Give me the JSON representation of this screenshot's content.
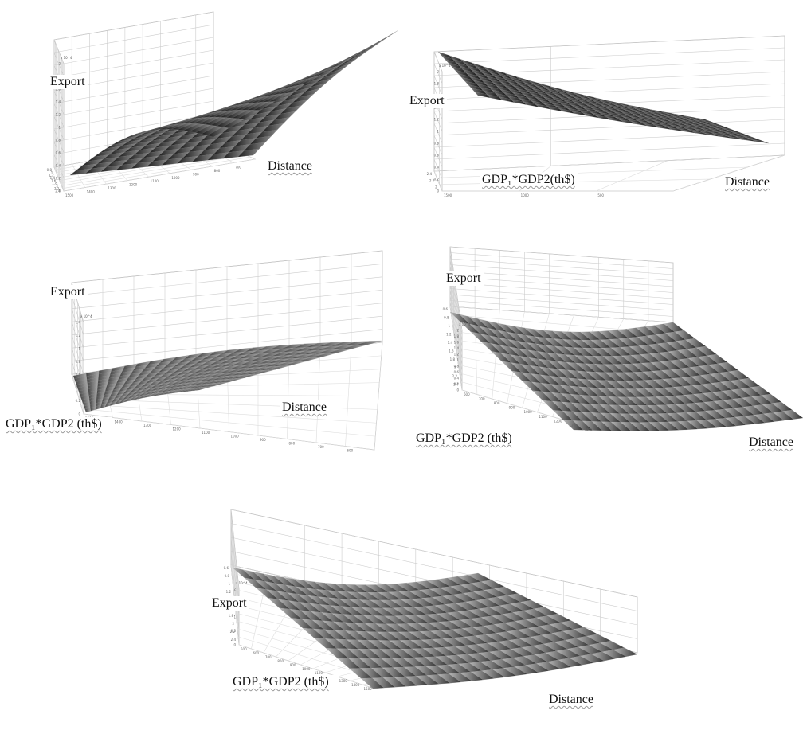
{
  "chart_data": [
    {
      "type": "surface3d",
      "exponent_label": "x 10^4",
      "labels": {
        "z": "Export",
        "x": "Distance"
      },
      "z_ticks": [
        "0",
        "0.2",
        "0.4",
        "0.6",
        "0.8",
        "1",
        "1.2",
        "1.4",
        "1.6",
        "1.8",
        "2"
      ],
      "x_ticks": [
        "1500",
        "1400",
        "1300",
        "1200",
        "1100",
        "1000",
        "900",
        "800",
        "700"
      ],
      "y_ticks": [
        "0.8",
        "1",
        "1.2",
        "1.4",
        "1.6",
        "1.8",
        "2",
        "2.2",
        "2.4"
      ],
      "zlim": [
        0,
        2
      ],
      "xlim": [
        650,
        1500
      ],
      "ylim": [
        0.8,
        2.4
      ],
      "surface": {
        "corner_low": 0.15,
        "corner_high": 2.0
      },
      "grid": true
    },
    {
      "type": "surface3d",
      "exponent_label": "x 10^4",
      "labels": {
        "z": "Export",
        "x": "Distance",
        "y": "GDP₁*GDP2(th$)"
      },
      "z_ticks": [
        "0",
        "0.2",
        "0.4",
        "0.6",
        "0.8",
        "1",
        "1.2",
        "1.4",
        "1.6",
        "1.8",
        "2"
      ],
      "x_ticks": [
        "1500",
        "1000",
        "500"
      ],
      "y_ticks": [
        "2.4",
        "2.2",
        "2"
      ],
      "zlim": [
        0,
        2
      ],
      "xlim": [
        500,
        1500
      ],
      "surface": {
        "corner_low": 0.15,
        "corner_high": 2.0
      },
      "grid": true
    },
    {
      "type": "surface3d",
      "exponent_label": "x 10^4",
      "labels": {
        "z": "Export",
        "x": "Distance",
        "y": "GDP₁*GDP2 (th$)"
      },
      "z_ticks": [
        "0",
        "0.2",
        "0.4",
        "0.6",
        "0.8",
        "1",
        "1.2",
        "1.4"
      ],
      "x_ticks": [
        "1500",
        "1400",
        "1300",
        "1200",
        "1100",
        "1000",
        "900",
        "800",
        "700",
        "600"
      ],
      "zlim": [
        0,
        1.4
      ],
      "xlim": [
        600,
        1500
      ],
      "surface": {
        "corner_low": 0.1,
        "corner_high": 1.35
      },
      "grid": true
    },
    {
      "type": "surface3d",
      "exponent_label": "x 10^4",
      "labels": {
        "z": "Export",
        "x": "Distance",
        "y": "GDP₁*GDP2 (th$)"
      },
      "z_ticks": [
        "0",
        "0.2",
        "0.4",
        "0.6",
        "0.8",
        "1",
        "1.2",
        "1.4",
        "1.6",
        "1.8",
        "2"
      ],
      "x_ticks": [
        "600",
        "700",
        "800",
        "900",
        "1000",
        "1100",
        "1200",
        "1300",
        "1400"
      ],
      "y_ticks": [
        "0.6",
        "0.8",
        "1",
        "1.2",
        "1.4",
        "1.6",
        "1.8",
        "2",
        "2.2",
        "2.4"
      ],
      "zlim": [
        0,
        2
      ],
      "xlim": [
        600,
        1400
      ],
      "ylim": [
        0.6,
        2.4
      ],
      "surface": {
        "corner_low": 0.25,
        "corner_high": 2.0
      },
      "grid": true
    },
    {
      "type": "surface3d",
      "exponent_label": "x 10^4",
      "labels": {
        "z": "Export",
        "x": "Distance",
        "y": "GDP₁*GDP2 (th$)"
      },
      "z_ticks": [
        "0",
        "0.5",
        "1",
        "1.5",
        "2"
      ],
      "x_ticks": [
        "500",
        "600",
        "700",
        "800",
        "900",
        "1000",
        "1100",
        "1200",
        "1300",
        "1400",
        "1500"
      ],
      "y_ticks": [
        "0.6",
        "0.8",
        "1",
        "1.2",
        "1.4",
        "1.6",
        "1.8",
        "2",
        "2.2",
        "2.4"
      ],
      "zlim": [
        0,
        2
      ],
      "xlim": [
        500,
        1500
      ],
      "ylim": [
        0.6,
        2.4
      ],
      "surface": {
        "corner_low": 0.25,
        "corner_high": 2.0
      },
      "grid": true
    }
  ]
}
